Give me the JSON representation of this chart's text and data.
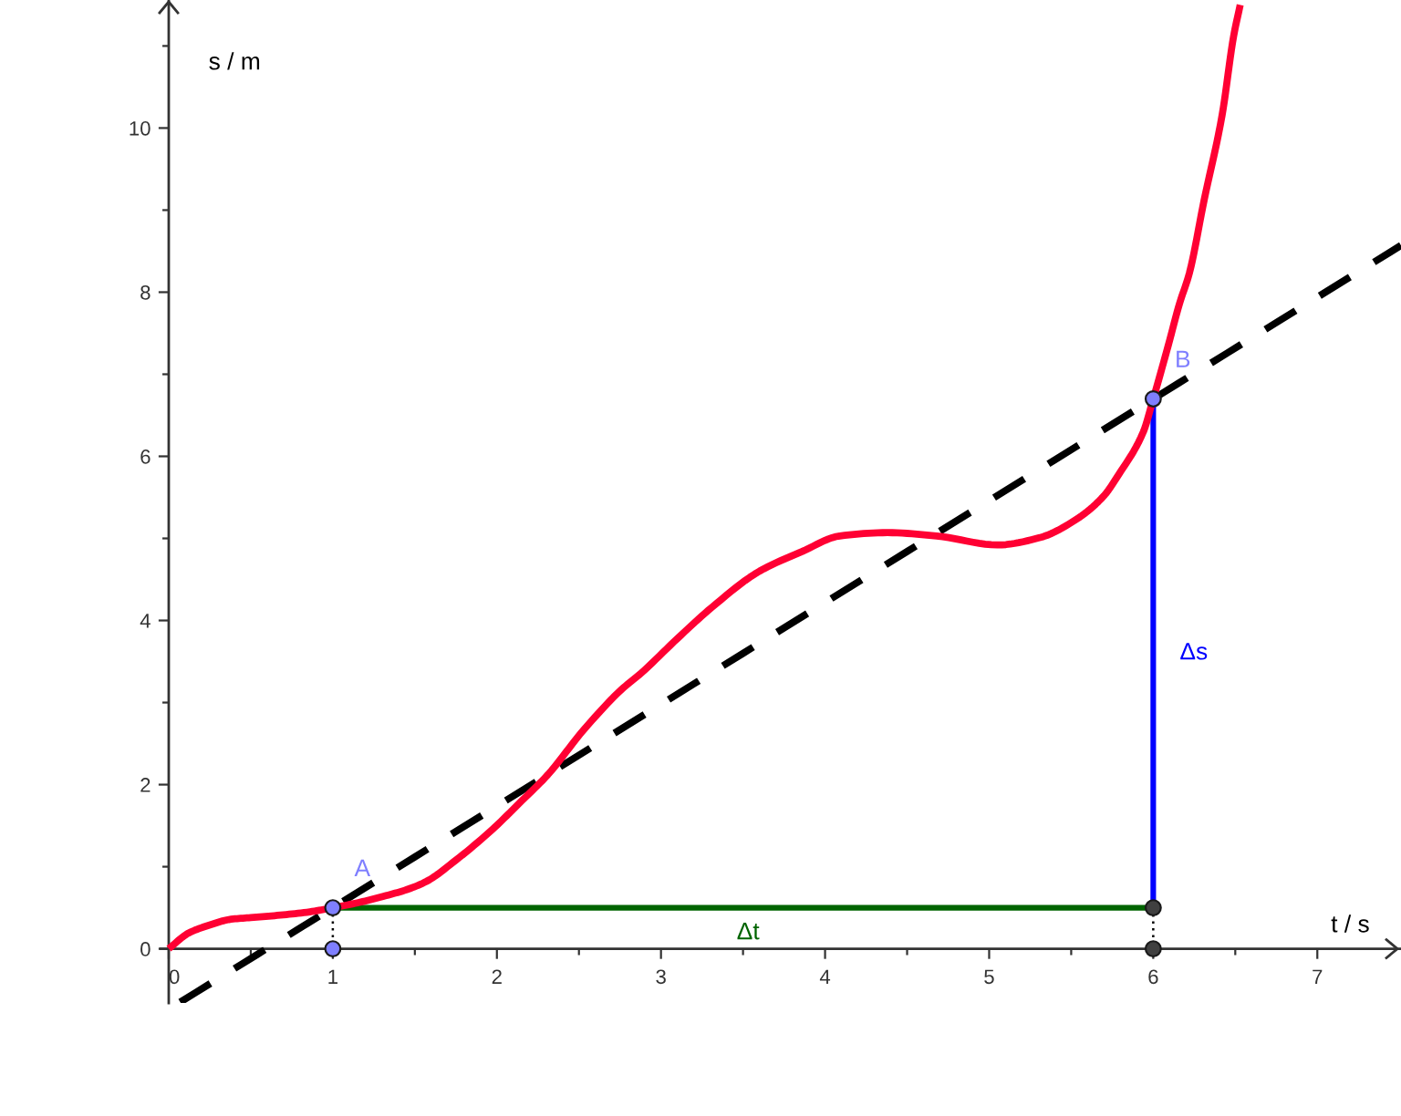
{
  "chart_data": {
    "type": "line",
    "xlabel": "t / s",
    "ylabel": "s / m",
    "xlim": [
      -0.05,
      7.51
    ],
    "ylim": [
      -0.66,
      11.56
    ],
    "xticks": [
      0,
      {
        "value": 0.5,
        "label": null
      },
      1,
      {
        "value": 1.5,
        "label": null
      },
      2,
      {
        "value": 2.5,
        "label": null
      },
      3,
      {
        "value": 3.5,
        "label": null
      },
      4,
      {
        "value": 4.5,
        "label": null
      },
      5,
      {
        "value": 5.5,
        "label": null
      },
      6,
      {
        "value": 6.5,
        "label": null
      },
      7
    ],
    "yticks": [
      0,
      {
        "value": 1,
        "label": null
      },
      2,
      {
        "value": 3,
        "label": null
      },
      4,
      {
        "value": 5,
        "label": null
      },
      6,
      {
        "value": 7,
        "label": null
      },
      8,
      {
        "value": 9,
        "label": null
      },
      10,
      {
        "value": 11,
        "label": null
      }
    ],
    "series": [
      {
        "color": "#000000",
        "line_style": "dashed",
        "x": [
          0.07,
          1,
          6,
          7.51
        ],
        "values": [
          -0.65,
          0.5,
          6.7,
          8.57
        ]
      },
      {
        "color": "#000000",
        "line_style": "dotted",
        "x": [
          1,
          1
        ],
        "values": [
          0.5,
          0
        ]
      },
      {
        "color": "#000000",
        "line_style": "dotted",
        "x": [
          6,
          6
        ],
        "values": [
          0.5,
          0
        ]
      },
      {
        "name": "Δt",
        "color": "#006400",
        "x": [
          1,
          6
        ],
        "values": [
          0.5,
          0.5
        ]
      },
      {
        "name": "Δs",
        "color": "#0000ff",
        "x": [
          6,
          6
        ],
        "values": [
          0.5,
          6.7
        ]
      },
      {
        "color": "#ff0033",
        "x": [
          0,
          0.12,
          0.25,
          0.38,
          0.5,
          0.68,
          0.86,
          1.0,
          1.15,
          1.31,
          1.45,
          1.57,
          1.75,
          1.97,
          2.15,
          2.31,
          2.53,
          2.76,
          2.88,
          3.1,
          3.31,
          3.6,
          3.86,
          4.09,
          4.38,
          4.68,
          5.05,
          5.31,
          5.53,
          5.7,
          5.79,
          5.94,
          6.0,
          6.09,
          6.16,
          6.22,
          6.31,
          6.42,
          6.49,
          6.53
        ],
        "values": [
          0,
          0.19,
          0.29,
          0.36,
          0.38,
          0.41,
          0.45,
          0.5,
          0.56,
          0.64,
          0.72,
          0.82,
          1.08,
          1.45,
          1.8,
          2.12,
          2.67,
          3.16,
          3.36,
          3.78,
          4.16,
          4.6,
          4.84,
          5.03,
          5.07,
          5.03,
          4.92,
          5.01,
          5.23,
          5.52,
          5.78,
          6.3,
          6.7,
          7.34,
          7.86,
          8.23,
          9.12,
          10.16,
          11.12,
          11.5
        ]
      },
      {
        "type": "scatter",
        "name": "A",
        "color": "#7f7fff",
        "marker": "circle",
        "x": [
          1
        ],
        "values": [
          0.5
        ]
      },
      {
        "type": "scatter",
        "name": "B",
        "color": "#7f7fff",
        "marker": "circle",
        "x": [
          6
        ],
        "values": [
          6.7
        ]
      },
      {
        "type": "scatter",
        "color": "#7f7fff",
        "marker": "circle",
        "x": [
          1
        ],
        "values": [
          0
        ]
      },
      {
        "type": "scatter",
        "color": "#404040",
        "marker": "circle",
        "x": [
          6,
          6
        ],
        "values": [
          0.5,
          0
        ]
      }
    ]
  }
}
